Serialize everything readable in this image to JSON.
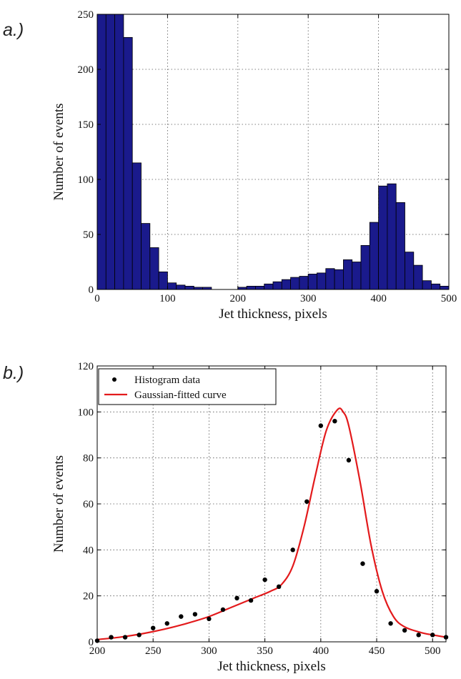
{
  "chart_data": [
    {
      "panel_label": "a.)",
      "type": "bar",
      "xlabel": "Jet thickness, pixels",
      "ylabel": "Number of events",
      "xlim": [
        0,
        500
      ],
      "ylim": [
        0,
        250
      ],
      "xticks": [
        0,
        100,
        200,
        300,
        400,
        500
      ],
      "yticks": [
        0,
        50,
        100,
        150,
        200,
        250
      ],
      "grid": true,
      "bar_color": "#1a1a8c",
      "bin_width": 12.5,
      "bin_starts": [
        0,
        12.5,
        25,
        37.5,
        50,
        62.5,
        75,
        87.5,
        100,
        112.5,
        125,
        137.5,
        150,
        162.5,
        175,
        187.5,
        200,
        212.5,
        225,
        237.5,
        250,
        262.5,
        275,
        287.5,
        300,
        312.5,
        325,
        337.5,
        350,
        362.5,
        375,
        387.5,
        400,
        412.5,
        425,
        437.5,
        450,
        462.5,
        475,
        487.5
      ],
      "values": [
        250,
        250,
        250,
        229,
        115,
        60,
        38,
        16,
        6,
        4,
        3,
        2,
        2,
        0,
        0,
        0,
        2,
        3,
        3,
        5,
        7,
        9,
        11,
        12,
        14,
        15,
        19,
        18,
        27,
        25,
        40,
        61,
        94,
        96,
        79,
        34,
        22,
        8,
        5,
        3
      ]
    },
    {
      "panel_label": "b.)",
      "type": "scatter",
      "xlabel": "Jet thickness, pixels",
      "ylabel": "Number of events",
      "xlim": [
        200,
        512
      ],
      "ylim": [
        0,
        120
      ],
      "xticks": [
        200,
        250,
        300,
        350,
        400,
        450,
        500
      ],
      "yticks": [
        0,
        20,
        40,
        60,
        80,
        100,
        120
      ],
      "grid": true,
      "legend_position": "top-left",
      "series": [
        {
          "name": "Histogram data",
          "kind": "points",
          "color": "#000000",
          "x": [
            200,
            212.5,
            225,
            237.5,
            250,
            262.5,
            275,
            287.5,
            300,
            312.5,
            325,
            337.5,
            350,
            362.5,
            375,
            387.5,
            400,
            412.5,
            425,
            437.5,
            450,
            462.5,
            475,
            487.5,
            500,
            512
          ],
          "y": [
            0.5,
            2,
            2,
            3,
            6,
            8,
            11,
            12,
            10,
            14,
            19,
            18,
            27,
            24,
            40,
            61,
            94,
            96,
            79,
            34,
            22,
            8,
            5,
            3,
            3,
            2
          ]
        },
        {
          "name": "Gaussian-fitted curve",
          "kind": "line",
          "color": "#e31a1c",
          "x": [
            200,
            220,
            240,
            260,
            280,
            300,
            320,
            340,
            355,
            365,
            375,
            385,
            395,
            405,
            415,
            420,
            425,
            435,
            445,
            455,
            465,
            475,
            490,
            500,
            512
          ],
          "y": [
            1,
            2,
            3.5,
            5.5,
            8,
            11,
            15,
            19,
            22,
            25,
            33,
            50,
            72,
            92,
            101,
            100,
            94,
            70,
            42,
            22,
            11,
            6.5,
            4,
            3,
            2
          ]
        }
      ]
    }
  ]
}
